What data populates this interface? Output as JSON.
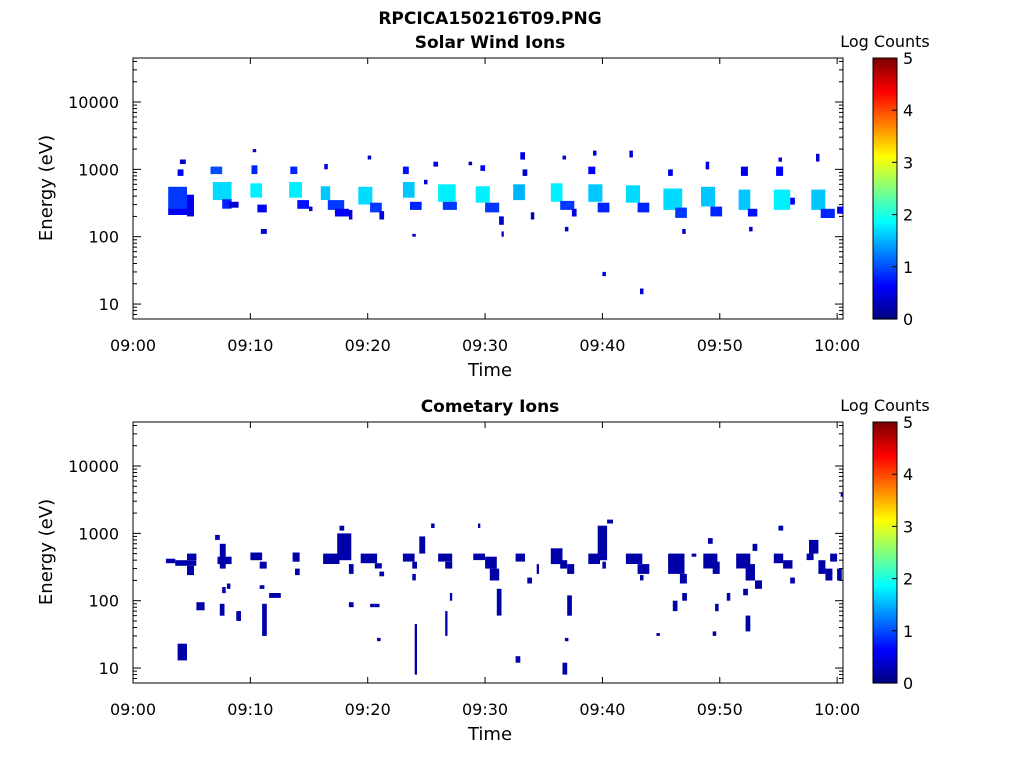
{
  "figure_title": "RPCICA150216T09.PNG",
  "chart_data": [
    {
      "type": "heatmap",
      "title": "Solar Wind Ions",
      "xlabel": "Time",
      "ylabel": "Energy (eV)",
      "xticks": [
        "09:00",
        "09:10",
        "09:20",
        "09:30",
        "09:40",
        "09:50",
        "10:00"
      ],
      "xlim_minutes": [
        0,
        60.5
      ],
      "yscale": "log",
      "ylim": [
        6,
        45000
      ],
      "yticks": [
        {
          "value": 10,
          "label": "10"
        },
        {
          "value": 100,
          "label": "100"
        },
        {
          "value": 1000,
          "label": "1000"
        },
        {
          "value": 10000,
          "label": "10000"
        }
      ],
      "colorbar": {
        "label": "Log Counts",
        "min": 0,
        "max": 5,
        "ticks": [
          "0",
          "1",
          "2",
          "3",
          "4",
          "5"
        ],
        "colormap": "jet"
      },
      "cells_note": "cells: [start_minute_after_09:00, end_minute, energy_low_eV, energy_high_eV, log_counts]",
      "cells": [
        [
          3.0,
          4.6,
          250,
          550,
          0.9
        ],
        [
          3.0,
          4.6,
          210,
          260,
          0.6
        ],
        [
          4.6,
          5.2,
          200,
          420,
          0.5
        ],
        [
          3.8,
          4.3,
          800,
          1000,
          0.6
        ],
        [
          4.0,
          4.5,
          1200,
          1400,
          0.4
        ],
        [
          6.6,
          7.6,
          850,
          1100,
          1.0
        ],
        [
          6.8,
          8.4,
          350,
          650,
          1.7
        ],
        [
          7.6,
          8.4,
          260,
          360,
          0.8
        ],
        [
          8.2,
          9.0,
          270,
          330,
          0.4
        ],
        [
          10.1,
          10.6,
          850,
          1150,
          0.8
        ],
        [
          10.0,
          11.0,
          380,
          620,
          1.8
        ],
        [
          10.6,
          11.4,
          230,
          300,
          0.6
        ],
        [
          10.9,
          11.4,
          110,
          130,
          0.4
        ],
        [
          10.2,
          10.5,
          1800,
          2000,
          0.3
        ],
        [
          13.4,
          14.0,
          850,
          1100,
          0.8
        ],
        [
          13.3,
          14.4,
          380,
          650,
          1.8
        ],
        [
          14.0,
          15.0,
          260,
          350,
          0.7
        ],
        [
          15.0,
          15.3,
          240,
          280,
          0.4
        ],
        [
          16.0,
          16.8,
          350,
          560,
          1.6
        ],
        [
          16.6,
          18.0,
          250,
          350,
          0.9
        ],
        [
          17.2,
          18.4,
          200,
          260,
          0.6
        ],
        [
          16.3,
          16.6,
          1000,
          1200,
          0.5
        ],
        [
          18.4,
          18.7,
          180,
          250,
          0.4
        ],
        [
          19.2,
          20.4,
          300,
          550,
          1.7
        ],
        [
          20.2,
          21.2,
          230,
          320,
          0.9
        ],
        [
          21.0,
          21.4,
          180,
          240,
          0.5
        ],
        [
          20.0,
          20.3,
          1400,
          1600,
          0.4
        ],
        [
          23.0,
          23.5,
          850,
          1100,
          0.7
        ],
        [
          23.0,
          24.0,
          380,
          650,
          1.6
        ],
        [
          23.6,
          24.6,
          250,
          330,
          0.8
        ],
        [
          24.8,
          25.1,
          600,
          700,
          0.4
        ],
        [
          23.8,
          24.1,
          100,
          110,
          0.3
        ],
        [
          26.0,
          27.5,
          330,
          600,
          1.8
        ],
        [
          26.4,
          27.6,
          250,
          330,
          0.9
        ],
        [
          25.6,
          26.0,
          1100,
          1300,
          0.5
        ],
        [
          28.6,
          28.9,
          1150,
          1300,
          0.3
        ],
        [
          29.2,
          30.4,
          320,
          560,
          1.8
        ],
        [
          30.0,
          31.2,
          230,
          320,
          0.9
        ],
        [
          29.6,
          30.0,
          950,
          1150,
          0.6
        ],
        [
          31.2,
          31.6,
          150,
          200,
          0.4
        ],
        [
          31.4,
          31.6,
          100,
          120,
          0.3
        ],
        [
          32.4,
          33.4,
          350,
          600,
          1.5
        ],
        [
          33.0,
          33.4,
          1400,
          1800,
          0.5
        ],
        [
          33.2,
          33.6,
          800,
          1000,
          0.4
        ],
        [
          33.9,
          34.2,
          180,
          230,
          0.3
        ],
        [
          35.6,
          36.6,
          330,
          620,
          1.8
        ],
        [
          36.4,
          37.6,
          250,
          340,
          0.9
        ],
        [
          37.4,
          37.8,
          200,
          260,
          0.5
        ],
        [
          36.6,
          36.9,
          1400,
          1600,
          0.4
        ],
        [
          36.8,
          37.1,
          120,
          140,
          0.3
        ],
        [
          38.8,
          39.4,
          850,
          1100,
          0.6
        ],
        [
          38.8,
          40.0,
          330,
          600,
          1.6
        ],
        [
          39.6,
          40.6,
          230,
          320,
          0.8
        ],
        [
          40.0,
          40.3,
          26,
          30,
          0.4
        ],
        [
          39.2,
          39.5,
          1600,
          1900,
          0.4
        ],
        [
          42.0,
          43.2,
          320,
          580,
          1.7
        ],
        [
          43.0,
          44.0,
          230,
          320,
          0.8
        ],
        [
          43.2,
          43.5,
          14,
          17,
          0.4
        ],
        [
          42.3,
          42.6,
          1500,
          1900,
          0.4
        ],
        [
          45.2,
          46.8,
          250,
          520,
          1.7
        ],
        [
          46.2,
          47.2,
          190,
          270,
          0.9
        ],
        [
          45.6,
          46.0,
          800,
          1000,
          0.5
        ],
        [
          46.8,
          47.1,
          110,
          130,
          0.3
        ],
        [
          48.4,
          49.6,
          280,
          550,
          1.6
        ],
        [
          49.2,
          50.2,
          200,
          280,
          0.8
        ],
        [
          48.8,
          49.1,
          1000,
          1300,
          0.5
        ],
        [
          51.6,
          52.6,
          250,
          500,
          1.6
        ],
        [
          51.8,
          52.4,
          800,
          1100,
          0.5
        ],
        [
          52.4,
          53.2,
          200,
          260,
          0.7
        ],
        [
          52.5,
          52.8,
          120,
          140,
          0.3
        ],
        [
          54.6,
          56.0,
          250,
          500,
          1.8
        ],
        [
          54.8,
          55.4,
          800,
          1100,
          0.6
        ],
        [
          56.0,
          56.4,
          300,
          380,
          0.6
        ],
        [
          55.0,
          55.3,
          1300,
          1500,
          0.4
        ],
        [
          57.8,
          59.0,
          250,
          500,
          1.6
        ],
        [
          58.6,
          59.8,
          190,
          260,
          0.8
        ],
        [
          58.2,
          58.5,
          1300,
          1700,
          0.4
        ],
        [
          60.0,
          60.5,
          220,
          280,
          0.5
        ]
      ]
    },
    {
      "type": "heatmap",
      "title": "Cometary Ions",
      "xlabel": "Time",
      "ylabel": "Energy (eV)",
      "xticks": [
        "09:00",
        "09:10",
        "09:20",
        "09:30",
        "09:40",
        "09:50",
        "10:00"
      ],
      "xlim_minutes": [
        0,
        60.5
      ],
      "yscale": "log",
      "ylim": [
        6,
        45000
      ],
      "yticks": [
        {
          "value": 10,
          "label": "10"
        },
        {
          "value": 100,
          "label": "100"
        },
        {
          "value": 1000,
          "label": "1000"
        },
        {
          "value": 10000,
          "label": "10000"
        }
      ],
      "colorbar": {
        "label": "Log Counts",
        "min": 0,
        "max": 5,
        "ticks": [
          "0",
          "1",
          "2",
          "3",
          "4",
          "5"
        ],
        "colormap": "jet"
      },
      "cells_note": "cells: [start_minute_after_09:00, end_minute, energy_low_eV, energy_high_eV, log_counts]",
      "cells": [
        [
          2.8,
          3.6,
          360,
          420,
          0.2
        ],
        [
          3.6,
          5.4,
          330,
          400,
          0.2
        ],
        [
          4.6,
          5.4,
          400,
          500,
          0.2
        ],
        [
          4.6,
          5.2,
          240,
          330,
          0.2
        ],
        [
          3.8,
          4.6,
          13,
          23,
          0.2
        ],
        [
          5.4,
          6.1,
          72,
          95,
          0.2
        ],
        [
          7.4,
          7.9,
          300,
          700,
          0.2
        ],
        [
          7.2,
          8.4,
          350,
          450,
          0.2
        ],
        [
          7.0,
          7.4,
          800,
          950,
          0.2
        ],
        [
          7.4,
          7.8,
          60,
          90,
          0.2
        ],
        [
          8.8,
          9.2,
          50,
          70,
          0.2
        ],
        [
          8.0,
          8.3,
          150,
          180,
          0.2
        ],
        [
          7.6,
          7.9,
          130,
          160,
          0.2
        ],
        [
          10.0,
          11.0,
          400,
          520,
          0.2
        ],
        [
          10.8,
          11.4,
          300,
          380,
          0.2
        ],
        [
          11.0,
          11.4,
          30,
          90,
          0.2
        ],
        [
          10.8,
          11.2,
          150,
          170,
          0.2
        ],
        [
          11.6,
          12.6,
          110,
          130,
          0.2
        ],
        [
          13.6,
          14.2,
          380,
          520,
          0.2
        ],
        [
          13.8,
          14.2,
          240,
          300,
          0.2
        ],
        [
          16.2,
          17.6,
          350,
          500,
          0.2
        ],
        [
          17.4,
          18.6,
          400,
          1000,
          0.2
        ],
        [
          17.6,
          18.0,
          1100,
          1300,
          0.2
        ],
        [
          18.4,
          18.8,
          250,
          350,
          0.2
        ],
        [
          18.4,
          18.8,
          80,
          95,
          0.2
        ],
        [
          19.4,
          20.8,
          360,
          500,
          0.2
        ],
        [
          20.6,
          21.2,
          300,
          360,
          0.2
        ],
        [
          21.0,
          21.4,
          230,
          270,
          0.2
        ],
        [
          20.2,
          20.6,
          80,
          90,
          0.2
        ],
        [
          20.6,
          21.0,
          80,
          90,
          0.2
        ],
        [
          20.8,
          21.1,
          25,
          28,
          0.2
        ],
        [
          23.0,
          24.0,
          380,
          500,
          0.2
        ],
        [
          23.8,
          24.2,
          300,
          380,
          0.2
        ],
        [
          24.0,
          24.2,
          8,
          45,
          0.2
        ],
        [
          24.4,
          24.9,
          500,
          900,
          0.2
        ],
        [
          25.4,
          25.7,
          1200,
          1400,
          0.2
        ],
        [
          23.8,
          24.1,
          200,
          250,
          0.2
        ],
        [
          26.0,
          27.2,
          380,
          500,
          0.2
        ],
        [
          26.6,
          27.2,
          300,
          380,
          0.2
        ],
        [
          27.0,
          27.2,
          100,
          130,
          0.2
        ],
        [
          26.6,
          26.8,
          30,
          70,
          0.2
        ],
        [
          29.0,
          30.0,
          400,
          500,
          0.2
        ],
        [
          30.0,
          31.0,
          300,
          450,
          0.2
        ],
        [
          30.4,
          31.2,
          200,
          300,
          0.2
        ],
        [
          31.0,
          31.4,
          60,
          150,
          0.2
        ],
        [
          29.4,
          29.6,
          1200,
          1400,
          0.2
        ],
        [
          32.6,
          33.4,
          380,
          500,
          0.2
        ],
        [
          32.6,
          33.0,
          12,
          15,
          0.2
        ],
        [
          33.6,
          34.0,
          180,
          220,
          0.2
        ],
        [
          34.4,
          34.6,
          250,
          350,
          0.2
        ],
        [
          35.6,
          36.6,
          350,
          600,
          0.2
        ],
        [
          36.4,
          37.0,
          300,
          400,
          0.2
        ],
        [
          37.0,
          37.6,
          250,
          350,
          0.2
        ],
        [
          36.6,
          37.0,
          8,
          12,
          0.2
        ],
        [
          37.0,
          37.4,
          60,
          120,
          0.2
        ],
        [
          36.8,
          37.1,
          25,
          28,
          0.2
        ],
        [
          38.8,
          39.8,
          350,
          500,
          0.2
        ],
        [
          39.6,
          40.4,
          400,
          1300,
          0.2
        ],
        [
          40.4,
          40.9,
          1400,
          1600,
          0.2
        ],
        [
          40.0,
          40.3,
          300,
          380,
          0.2
        ],
        [
          42.0,
          43.4,
          350,
          500,
          0.2
        ],
        [
          43.0,
          44.0,
          250,
          350,
          0.2
        ],
        [
          44.6,
          44.9,
          30,
          33,
          0.2
        ],
        [
          43.2,
          43.5,
          200,
          240,
          0.2
        ],
        [
          45.6,
          47.0,
          250,
          500,
          0.2
        ],
        [
          46.6,
          47.2,
          180,
          250,
          0.2
        ],
        [
          46.0,
          46.4,
          70,
          100,
          0.2
        ],
        [
          46.8,
          47.2,
          100,
          130,
          0.2
        ],
        [
          47.6,
          48.0,
          450,
          500,
          0.2
        ],
        [
          48.6,
          49.8,
          300,
          500,
          0.2
        ],
        [
          49.4,
          50.0,
          250,
          380,
          0.2
        ],
        [
          49.0,
          49.4,
          700,
          850,
          0.2
        ],
        [
          49.6,
          49.9,
          70,
          90,
          0.2
        ],
        [
          50.6,
          50.9,
          100,
          130,
          0.2
        ],
        [
          49.4,
          49.7,
          30,
          35,
          0.2
        ],
        [
          51.4,
          52.6,
          300,
          500,
          0.2
        ],
        [
          52.2,
          53.0,
          200,
          350,
          0.2
        ],
        [
          52.2,
          52.6,
          35,
          60,
          0.2
        ],
        [
          52.0,
          52.4,
          120,
          150,
          0.2
        ],
        [
          53.0,
          53.6,
          150,
          200,
          0.2
        ],
        [
          52.8,
          53.2,
          550,
          700,
          0.2
        ],
        [
          54.6,
          55.4,
          360,
          500,
          0.2
        ],
        [
          55.4,
          56.2,
          300,
          400,
          0.2
        ],
        [
          55.0,
          55.4,
          1100,
          1300,
          0.2
        ],
        [
          56.0,
          56.4,
          180,
          220,
          0.2
        ],
        [
          57.4,
          58.0,
          400,
          500,
          0.2
        ],
        [
          57.6,
          58.4,
          500,
          800,
          0.2
        ],
        [
          58.4,
          59.0,
          250,
          400,
          0.2
        ],
        [
          59.0,
          59.6,
          200,
          300,
          0.2
        ],
        [
          59.4,
          60.0,
          380,
          500,
          0.2
        ],
        [
          60.0,
          60.4,
          200,
          300,
          0.2
        ],
        [
          60.3,
          60.5,
          3500,
          4000,
          0.2
        ]
      ]
    }
  ]
}
